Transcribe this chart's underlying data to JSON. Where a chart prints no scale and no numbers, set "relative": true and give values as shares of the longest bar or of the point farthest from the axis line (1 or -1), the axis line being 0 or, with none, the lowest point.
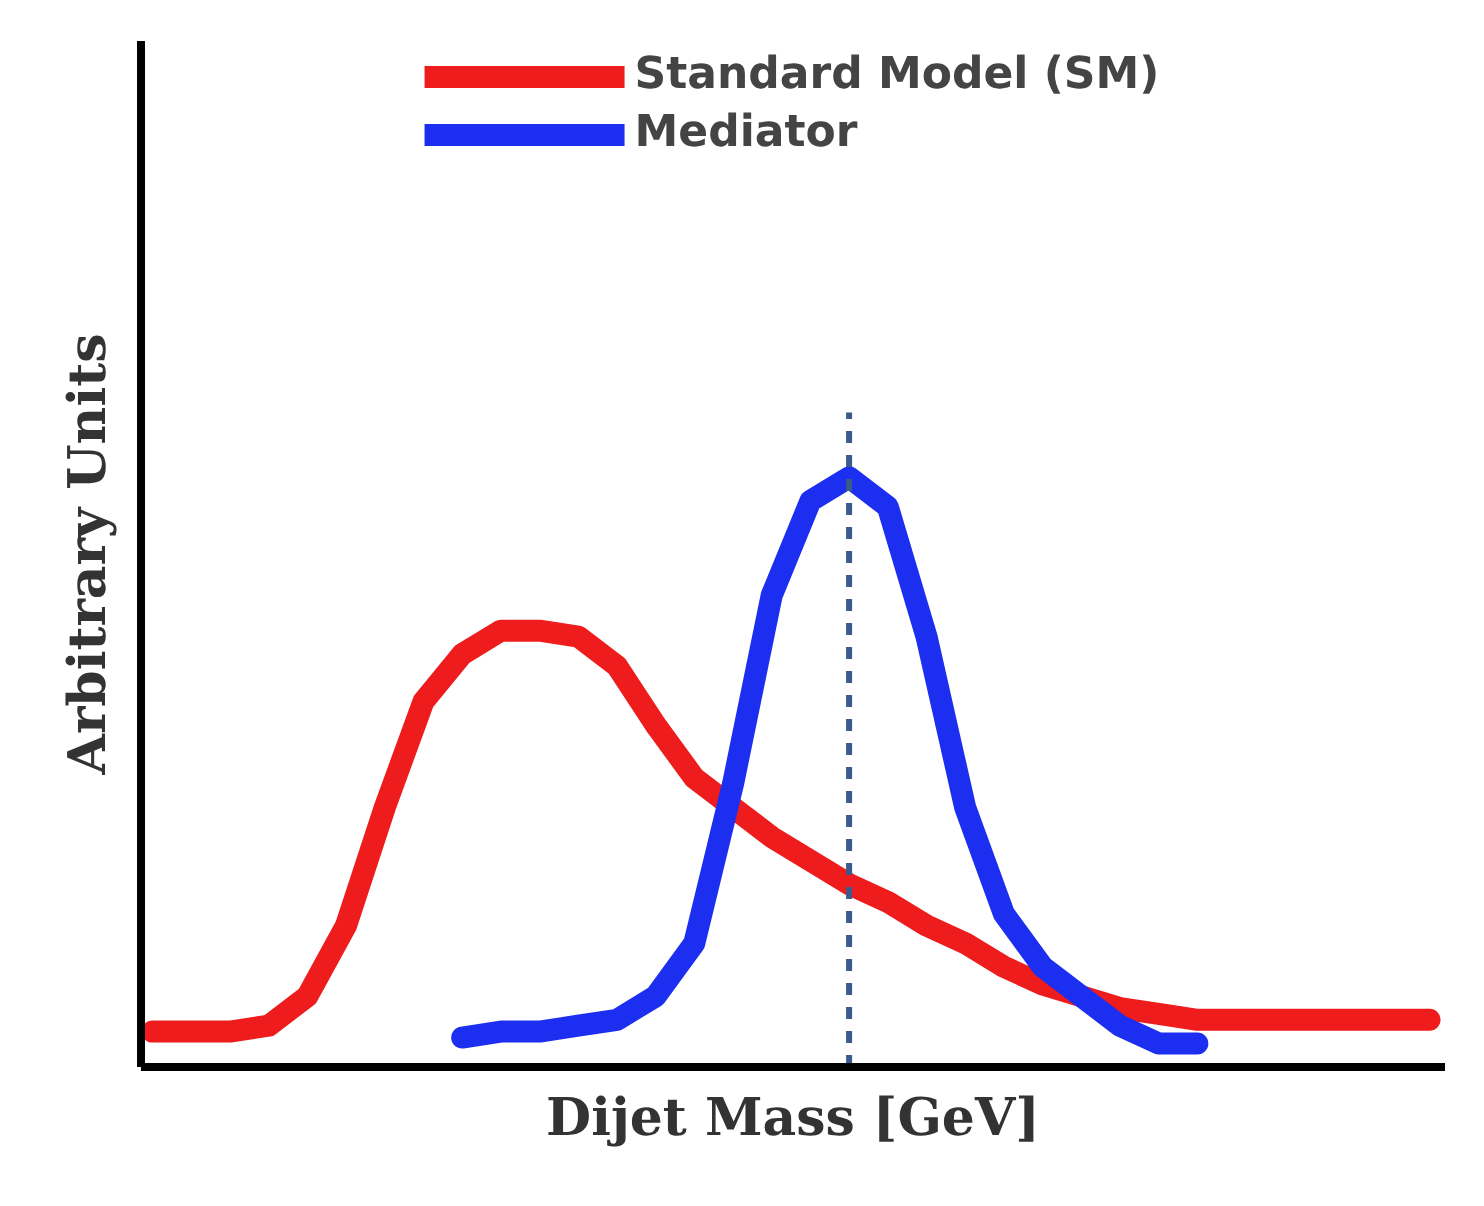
{
  "chart_data": {
    "type": "line",
    "relative": true,
    "xlabel": "Dijet Mass [GeV]",
    "ylabel": "Arbitrary Units",
    "categories": [
      null,
      null,
      null,
      null,
      null,
      null,
      null,
      null,
      null,
      null,
      null,
      null,
      null,
      null,
      null,
      null,
      null,
      null,
      null,
      null,
      null,
      null,
      null,
      null,
      null,
      null,
      null,
      null,
      null,
      null,
      null,
      null,
      null,
      null
    ],
    "series": [
      {
        "name": "Standard Model (SM)",
        "color": "#ee1c1c",
        "values": [
          0.06,
          0.06,
          0.06,
          0.07,
          0.12,
          0.24,
          0.44,
          0.62,
          0.7,
          0.74,
          0.74,
          0.73,
          0.68,
          0.58,
          0.49,
          0.44,
          0.39,
          0.35,
          0.31,
          0.28,
          0.24,
          0.21,
          0.17,
          0.14,
          0.12,
          0.1,
          0.09,
          0.08,
          0.08,
          0.08,
          0.08,
          0.08,
          0.08,
          0.08
        ]
      },
      {
        "name": "Mediator",
        "color": "#1c2ef0",
        "values": [
          null,
          null,
          null,
          null,
          null,
          null,
          null,
          null,
          0.05,
          0.06,
          0.06,
          0.07,
          0.08,
          0.12,
          0.21,
          0.48,
          0.8,
          0.96,
          1.0,
          0.95,
          0.73,
          0.44,
          0.26,
          0.17,
          0.12,
          0.07,
          0.04,
          0.04,
          null,
          null,
          null,
          null,
          null,
          null
        ]
      }
    ],
    "legend": "top",
    "grid": false,
    "line_style": "solid"
  }
}
